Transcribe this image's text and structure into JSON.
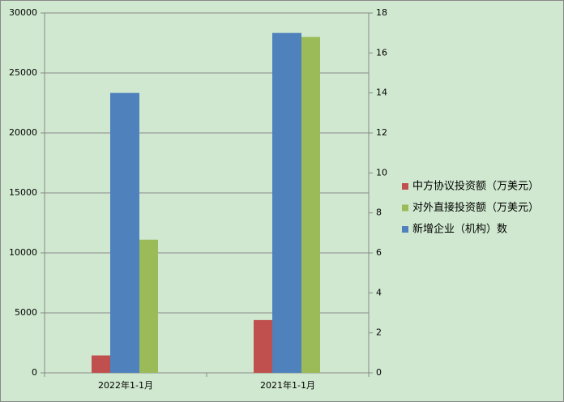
{
  "chart_data": {
    "type": "bar",
    "categories": [
      "2022年1-1月",
      "2021年1-1月"
    ],
    "series": [
      {
        "name": "中方协议投资额（万美元）",
        "color": "#c0504d",
        "values": [
          1450,
          4400
        ]
      },
      {
        "name": "对外直接投资额（万美元）",
        "color": "#9bbb59",
        "values": [
          11100,
          28000
        ]
      },
      {
        "name": "新增企业（机构）数",
        "color": "#4f81bd",
        "values": [
          14,
          17
        ],
        "axis": "y2"
      }
    ],
    "ylim": [
      0,
      30000
    ],
    "yticks": [
      0,
      5000,
      10000,
      15000,
      20000,
      25000,
      30000
    ],
    "y2lim": [
      0,
      18
    ],
    "y2ticks": [
      0,
      2,
      4,
      6,
      8,
      10,
      12,
      14,
      16,
      18
    ],
    "grid": true,
    "legend": "right"
  }
}
